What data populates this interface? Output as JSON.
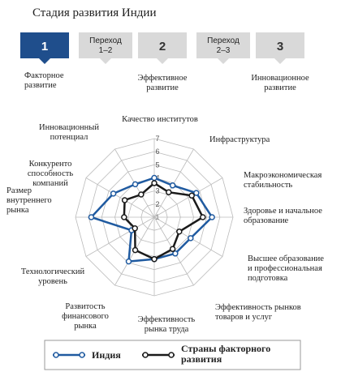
{
  "header": {
    "title": "Стадия развития Индии",
    "stages": [
      {
        "label": [
          "1"
        ],
        "caption": [
          "Факторное",
          "развитие"
        ],
        "active": true
      },
      {
        "label": [
          "Переход",
          "1–2"
        ]
      },
      {
        "label": [
          "2"
        ],
        "caption": [
          "Эффективное",
          "развитие"
        ]
      },
      {
        "label": [
          "Переход",
          "2–3"
        ]
      },
      {
        "label": [
          "3"
        ],
        "caption": [
          "Инновационное",
          "развитие"
        ]
      }
    ]
  },
  "chart_data": {
    "type": "radar",
    "categories": [
      [
        "Качество институтов"
      ],
      [
        "Инфраструктура"
      ],
      [
        "Макроэкономическая",
        "стабильность"
      ],
      [
        "Здоровье и начальное",
        "образование"
      ],
      [
        "Высшее образование",
        "и профессиональная",
        "подготовка"
      ],
      [
        "Эффективность рынков",
        "товаров и услуг"
      ],
      [
        "Эффективность",
        "рынка труда"
      ],
      [
        "Развитость",
        "финансового",
        "рынка"
      ],
      [
        "Технологический",
        "уровень"
      ],
      [
        "Размер",
        "внутреннего",
        "рынка"
      ],
      [
        "Конкуренто",
        "способность",
        "компаний"
      ],
      [
        "Инновационный",
        "потенциал"
      ]
    ],
    "series": [
      {
        "name": "Индия",
        "color": "#1f5aa0",
        "values": [
          4.0,
          3.8,
          4.7,
          5.4,
          4.2,
          4.2,
          4.2,
          4.9,
          3.0,
          5.8,
          4.6,
          3.9
        ]
      },
      {
        "name": [
          "Страны факторного",
          "развития"
        ],
        "color": "#1a1a1a",
        "values": [
          3.6,
          3.2,
          4.3,
          4.7,
          3.2,
          3.8,
          4.2,
          3.9,
          2.7,
          3.3,
          3.6,
          3.0
        ]
      }
    ],
    "rlim": [
      1,
      7
    ],
    "rticks": [
      1,
      2,
      3,
      4,
      5,
      6,
      7
    ],
    "grid": true
  }
}
